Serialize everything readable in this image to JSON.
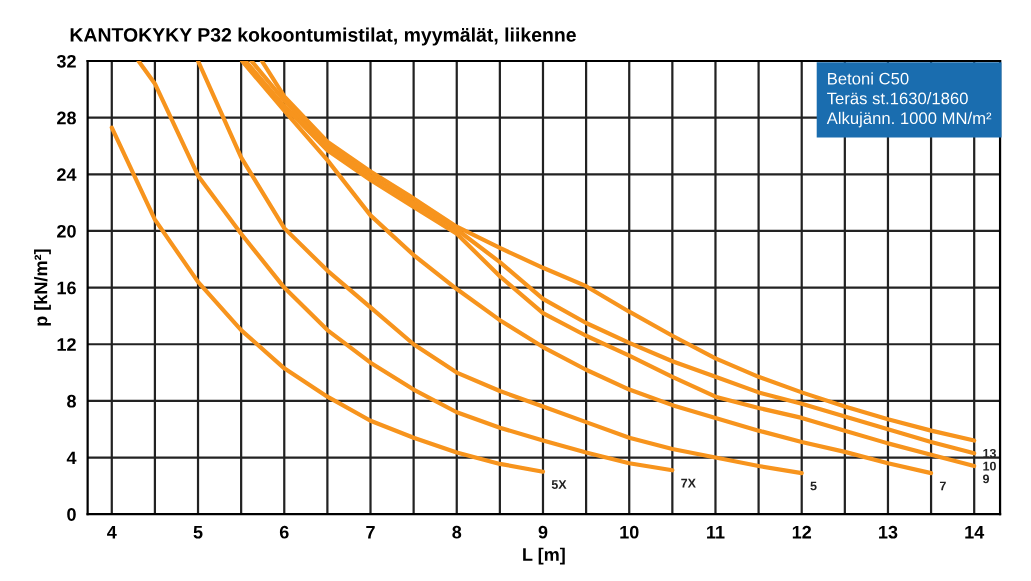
{
  "chart_data": {
    "type": "line",
    "title": "KANTOKYKY P32 kokoontumistilat, myymälät, liikenne",
    "xlabel": "L [m]",
    "ylabel": "p [kN/m²]",
    "annotations": [
      "Betoni C50",
      "Teräs st.1630/1860",
      "Alkujänn. 1000 MN/m²"
    ],
    "legend": false,
    "grid": true,
    "marker": "none",
    "line_style": "solid",
    "xlim": [
      3.72,
      14.3
    ],
    "ylim": [
      0,
      32
    ],
    "xticks": [
      4,
      {
        "value": 4.5,
        "label": null
      },
      5,
      {
        "value": 5.5,
        "label": null
      },
      6,
      {
        "value": 6.5,
        "label": null
      },
      7,
      {
        "value": 7.5,
        "label": null
      },
      8,
      {
        "value": 8.5,
        "label": null
      },
      9,
      {
        "value": 9.5,
        "label": null
      },
      10,
      {
        "value": 10.5,
        "label": null
      },
      11,
      {
        "value": 11.5,
        "label": null
      },
      12,
      {
        "value": 12.5,
        "label": null
      },
      13,
      {
        "value": 13.5,
        "label": null
      },
      14
    ],
    "yticks": [
      0,
      4,
      8,
      12,
      16,
      20,
      24,
      28,
      32
    ],
    "series": [
      {
        "name": "5X",
        "color": "#f7941d",
        "x": [
          4,
          4.5,
          5,
          5.5,
          6,
          6.5,
          7,
          7.5,
          8,
          8.5,
          9
        ],
        "values": [
          27.3,
          20.8,
          16.4,
          13.0,
          10.3,
          8.3,
          6.6,
          5.4,
          4.35,
          3.55,
          3.0
        ]
      },
      {
        "name": "7X",
        "color": "#f7941d",
        "x": [
          4.31,
          4.5,
          5,
          5.5,
          6,
          6.5,
          7,
          7.5,
          8,
          8.5,
          9,
          9.5,
          10,
          10.5
        ],
        "values": [
          32,
          30.4,
          23.9,
          19.8,
          16.0,
          13.0,
          10.7,
          8.8,
          7.2,
          6.1,
          5.2,
          4.35,
          3.6,
          3.1
        ]
      },
      {
        "name": "5",
        "color": "#f7941d",
        "x": [
          5,
          5.5,
          6,
          6.5,
          7,
          7.5,
          8,
          8.5,
          9,
          9.5,
          10,
          10.5,
          11,
          11.5,
          12
        ],
        "values": [
          32,
          25.2,
          20.2,
          17.2,
          14.6,
          12.0,
          10.0,
          8.7,
          7.6,
          6.5,
          5.4,
          4.6,
          4.0,
          3.4,
          2.9
        ]
      },
      {
        "name": "7",
        "color": "#f7941d",
        "x": [
          5.51,
          6,
          6.5,
          7,
          7.5,
          8,
          8.5,
          9,
          9.5,
          10,
          10.5,
          11,
          11.5,
          12,
          12.5,
          13,
          13.5
        ],
        "values": [
          32,
          28.5,
          25.0,
          21.1,
          18.3,
          15.9,
          13.7,
          11.8,
          10.2,
          8.8,
          7.7,
          6.8,
          5.9,
          5.1,
          4.4,
          3.6,
          2.9
        ]
      },
      {
        "name": "9",
        "color": "#f7941d",
        "x": [
          5.55,
          6,
          6.5,
          7,
          7.5,
          8,
          8.5,
          9,
          9.5,
          10,
          10.5,
          11,
          11.5,
          12,
          12.5,
          13,
          13.5,
          14
        ],
        "values": [
          32,
          28.8,
          25.7,
          23.6,
          21.7,
          19.8,
          16.8,
          14.2,
          12.6,
          11.2,
          9.7,
          8.3,
          7.5,
          6.8,
          5.9,
          5.0,
          4.2,
          3.4
        ]
      },
      {
        "name": "10",
        "color": "#f7941d",
        "x": [
          5.62,
          6,
          6.5,
          7,
          7.5,
          8,
          8.5,
          9,
          9.5,
          10,
          10.5,
          11,
          11.5,
          12,
          12.5,
          13,
          13.5,
          14
        ],
        "values": [
          32,
          29.2,
          26.0,
          23.9,
          22.0,
          20.1,
          17.8,
          15.2,
          13.5,
          12.1,
          10.8,
          9.7,
          8.6,
          7.8,
          6.9,
          6.0,
          5.1,
          4.3
        ]
      },
      {
        "name": "13",
        "color": "#f7941d",
        "x": [
          5.74,
          6,
          6.5,
          7,
          7.5,
          8,
          8.5,
          9,
          9.5,
          10,
          10.5,
          11,
          11.5,
          12,
          12.5,
          13,
          13.5,
          14
        ],
        "values": [
          32,
          29.5,
          26.3,
          24.2,
          22.3,
          20.3,
          18.8,
          17.4,
          16.1,
          14.3,
          12.6,
          11.0,
          9.7,
          8.6,
          7.6,
          6.7,
          5.9,
          5.2
        ]
      }
    ]
  }
}
